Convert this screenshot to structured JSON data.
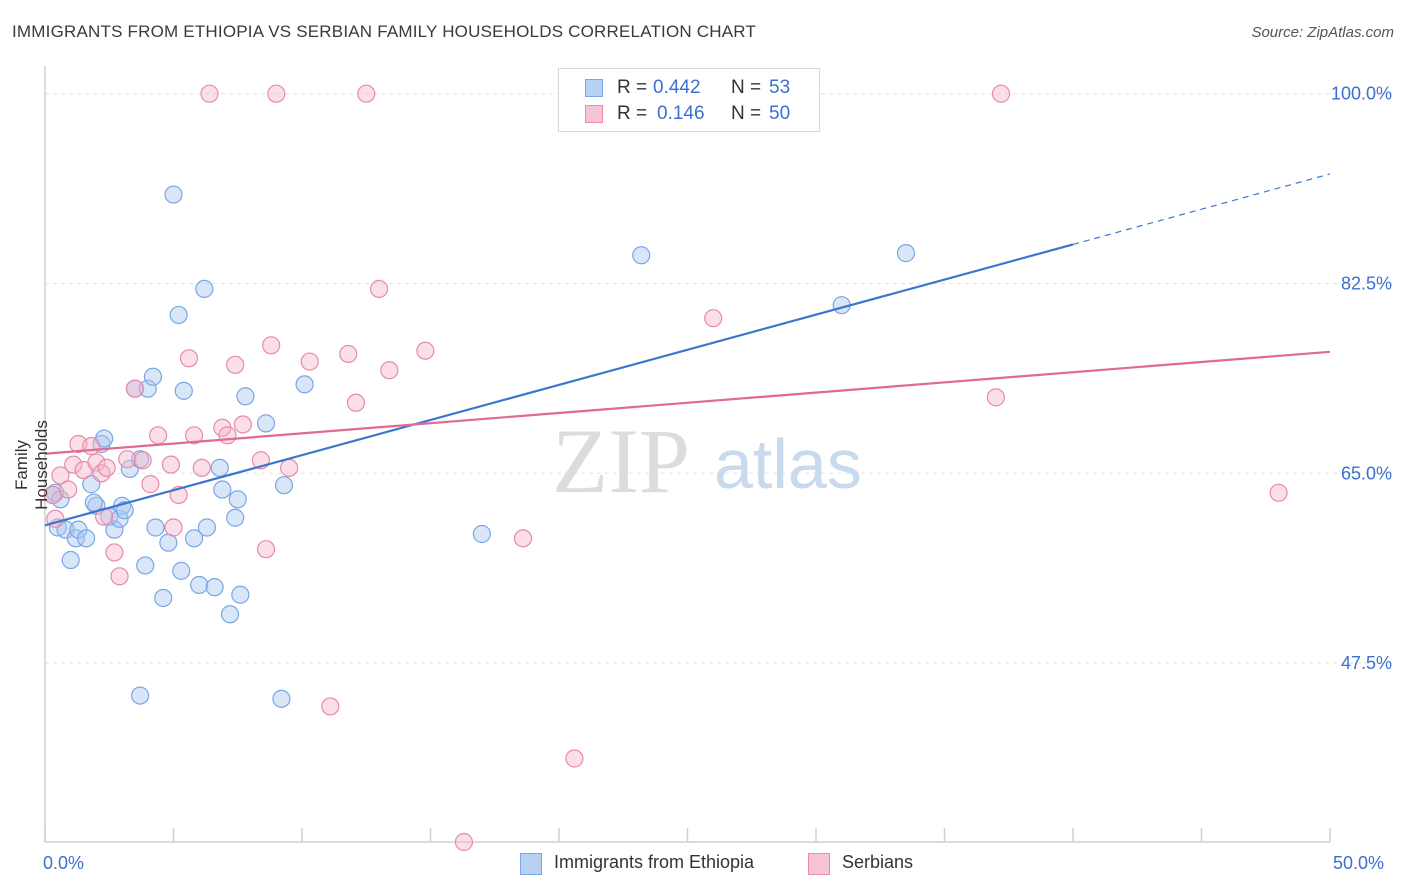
{
  "chart_data": {
    "type": "scatter",
    "title": "IMMIGRANTS FROM ETHIOPIA VS SERBIAN FAMILY HOUSEHOLDS CORRELATION CHART",
    "source": "Source: ZipAtlas.com",
    "xlabel": "",
    "ylabel": "Family Households",
    "xlim": [
      0,
      50
    ],
    "ylim": [
      31,
      102
    ],
    "x_tick_labels": {
      "left": "0.0%",
      "right": "50.0%"
    },
    "y_ticks": [
      {
        "value": 100,
        "label": "100.0%"
      },
      {
        "value": 82.5,
        "label": "82.5%"
      },
      {
        "value": 65,
        "label": "65.0%"
      },
      {
        "value": 47.5,
        "label": "47.5%"
      }
    ],
    "watermark": {
      "zip": "ZIP",
      "atlas": "atlas"
    },
    "legend": {
      "r_label": "R =",
      "n_label": "N =",
      "entries": [
        {
          "name": "Immigrants from Ethiopia",
          "r": "0.442",
          "n": "53",
          "color": "#7aa6e6",
          "fill": "#b8d0f2"
        },
        {
          "name": "Serbians",
          "r": "0.146",
          "n": "50",
          "color": "#e88aa8",
          "fill": "#f7c4d4"
        }
      ]
    },
    "series": [
      {
        "name": "Immigrants from Ethiopia",
        "color": "#7aa6e6",
        "trend": {
          "x0": 0,
          "y0": 60.2,
          "x1": 40,
          "y1": 86.1,
          "dash_to_x": 50,
          "dash_to_y": 92.6,
          "line_color": "#3a78d0"
        },
        "points": [
          [
            0.3,
            63.0
          ],
          [
            0.4,
            63.2
          ],
          [
            0.5,
            60.0
          ],
          [
            0.6,
            62.6
          ],
          [
            0.8,
            59.8
          ],
          [
            1.0,
            57.0
          ],
          [
            1.2,
            59.0
          ],
          [
            1.3,
            59.8
          ],
          [
            1.6,
            59.0
          ],
          [
            1.8,
            64.0
          ],
          [
            2.0,
            62.0
          ],
          [
            2.2,
            67.7
          ],
          [
            2.3,
            68.2
          ],
          [
            2.5,
            61.0
          ],
          [
            2.7,
            59.8
          ],
          [
            2.9,
            60.8
          ],
          [
            3.0,
            62.0
          ],
          [
            3.1,
            61.6
          ],
          [
            3.3,
            65.4
          ],
          [
            3.5,
            72.8
          ],
          [
            3.7,
            66.3
          ],
          [
            3.9,
            56.5
          ],
          [
            4.0,
            72.8
          ],
          [
            4.2,
            73.9
          ],
          [
            4.3,
            60.0
          ],
          [
            4.6,
            53.5
          ],
          [
            4.8,
            58.6
          ],
          [
            5.0,
            90.7
          ],
          [
            5.2,
            79.6
          ],
          [
            5.3,
            56.0
          ],
          [
            5.4,
            72.6
          ],
          [
            5.8,
            59.0
          ],
          [
            6.0,
            54.7
          ],
          [
            6.2,
            82.0
          ],
          [
            6.3,
            60.0
          ],
          [
            6.6,
            54.5
          ],
          [
            6.8,
            65.5
          ],
          [
            6.9,
            63.5
          ],
          [
            7.2,
            52.0
          ],
          [
            7.4,
            60.9
          ],
          [
            7.5,
            62.6
          ],
          [
            7.6,
            53.8
          ],
          [
            7.8,
            72.1
          ],
          [
            8.6,
            69.6
          ],
          [
            9.2,
            44.2
          ],
          [
            9.3,
            63.9
          ],
          [
            10.1,
            73.2
          ],
          [
            3.7,
            44.5
          ],
          [
            17.0,
            59.4
          ],
          [
            23.2,
            85.1
          ],
          [
            31.0,
            80.5
          ],
          [
            33.5,
            85.3
          ],
          [
            1.9,
            62.3
          ]
        ]
      },
      {
        "name": "Serbians",
        "color": "#e88aa8",
        "trend": {
          "x0": 0,
          "y0": 66.8,
          "x1": 50,
          "y1": 76.2,
          "line_color": "#e06a94"
        },
        "points": [
          [
            0.3,
            63.0
          ],
          [
            0.4,
            60.8
          ],
          [
            0.6,
            64.8
          ],
          [
            0.9,
            63.5
          ],
          [
            1.1,
            65.8
          ],
          [
            1.3,
            67.7
          ],
          [
            1.5,
            65.3
          ],
          [
            1.8,
            67.5
          ],
          [
            2.0,
            66.0
          ],
          [
            2.2,
            65.0
          ],
          [
            2.4,
            65.5
          ],
          [
            2.7,
            57.7
          ],
          [
            2.9,
            55.5
          ],
          [
            3.2,
            66.3
          ],
          [
            3.5,
            72.8
          ],
          [
            3.8,
            66.2
          ],
          [
            4.1,
            64.0
          ],
          [
            4.4,
            68.5
          ],
          [
            4.9,
            65.8
          ],
          [
            5.0,
            60.0
          ],
          [
            5.2,
            63.0
          ],
          [
            5.6,
            75.6
          ],
          [
            5.8,
            68.5
          ],
          [
            6.1,
            65.5
          ],
          [
            6.4,
            100.0
          ],
          [
            6.9,
            69.2
          ],
          [
            7.1,
            68.5
          ],
          [
            7.4,
            75.0
          ],
          [
            7.7,
            69.5
          ],
          [
            8.4,
            66.2
          ],
          [
            8.6,
            58.0
          ],
          [
            8.8,
            76.8
          ],
          [
            9.0,
            100.0
          ],
          [
            9.5,
            65.5
          ],
          [
            10.3,
            75.3
          ],
          [
            11.1,
            43.5
          ],
          [
            11.8,
            76.0
          ],
          [
            12.1,
            71.5
          ],
          [
            12.5,
            100.0
          ],
          [
            13.0,
            82.0
          ],
          [
            13.4,
            74.5
          ],
          [
            14.8,
            76.3
          ],
          [
            16.3,
            31.0
          ],
          [
            18.6,
            59.0
          ],
          [
            20.6,
            38.7
          ],
          [
            26.0,
            79.3
          ],
          [
            37.0,
            72.0
          ],
          [
            37.2,
            100.0
          ],
          [
            48.0,
            63.2
          ],
          [
            2.3,
            61.0
          ]
        ]
      }
    ]
  }
}
